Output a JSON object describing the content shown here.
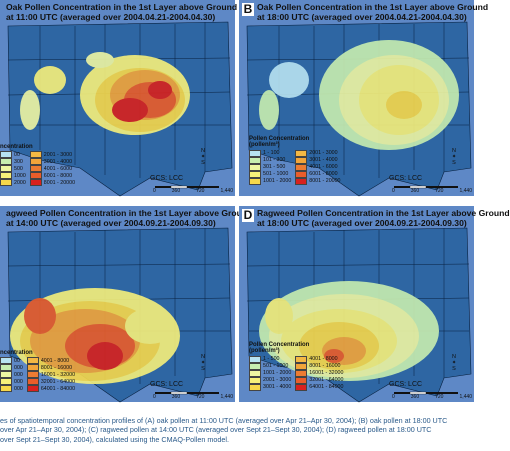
{
  "colors": {
    "ocean": "#5e88c6",
    "land_base": "#2e66a3",
    "state_line": "#08203f",
    "oak_low": [
      "#c9ecf5",
      "#eef6a2",
      "#f6f07a"
    ],
    "oak_high": [
      "#f6d84b",
      "#f2a53a",
      "#ea5d2a",
      "#d8211e"
    ],
    "legend_colors": [
      "#b8e3f1",
      "#c8eeb0",
      "#eef6a2",
      "#f6f07a",
      "#f6d84b",
      "#f4b844",
      "#f2a53a",
      "#ec7b32",
      "#ea5d2a",
      "#d8211e"
    ]
  },
  "panels": {
    "a": {
      "letter": "",
      "title1": "Oak Pollen Concentration in the 1st Layer above Ground",
      "title2": "at 11:00 UTC (averaged over 2004.04.21-2004.04.30)",
      "legend_title": "ncentration",
      "legend_unit": "",
      "legend_left": [
        "00",
        "300",
        "500",
        "1000",
        "2000"
      ],
      "legend_right": [
        "2001 - 3000",
        "3001 - 4000",
        "4001 - 6000",
        "6001 - 8000",
        "8001 - 20000"
      ]
    },
    "b": {
      "letter": "B",
      "title1": "Oak Pollen Concentration in the 1st Layer above Ground",
      "title2": "at 18:00 UTC (averaged over 2004.04.21-2004.04.30)",
      "legend_title": "Pollen Concentration",
      "legend_unit": "(pollen/m³)",
      "legend_left": [
        "1 - 100",
        "101 - 300",
        "301 - 500",
        "501 - 1000",
        "1001 - 2000"
      ],
      "legend_right": [
        "2001 - 3000",
        "3001 - 4000",
        "4001 - 6000",
        "6001 - 8000",
        "8001 - 20000"
      ]
    },
    "c": {
      "letter": "",
      "title1": "agweed Pollen Concentration in the 1st Layer above Ground",
      "title2": "at 14:00 UTC (averaged over 2004.09.21-2004.09.30)",
      "legend_title": "ncentration",
      "legend_unit": "",
      "legend_left": [
        "00",
        "000",
        "000",
        "000",
        "000"
      ],
      "legend_right": [
        "4001 - 8000",
        "8001 - 16000",
        "16001 - 32000",
        "32001 - 64000",
        "64001 - 84000"
      ]
    },
    "d": {
      "letter": "D",
      "title1": "Ragweed Pollen Concentration in the 1st Layer above Ground",
      "title2": "at 18:00 UTC (averaged over 2004.09.21-2004.09.30)",
      "legend_title": "Pollen Concentration",
      "legend_unit": "(pollen/m³)",
      "legend_left": [
        "1 - 500",
        "501 - 1000",
        "1001 - 2000",
        "2001 - 3000",
        "3001 - 4000"
      ],
      "legend_right": [
        "4001 - 8000",
        "8001 - 16000",
        "16001 - 32000",
        "32001 - 64000",
        "64001 - 84000"
      ]
    }
  },
  "map_common": {
    "projection": "GCS: LCC",
    "scale_ticks": [
      "0",
      "360",
      "720",
      "1,440"
    ],
    "scale_unit": "Km",
    "north_n": "N",
    "north_s": "S"
  },
  "caption": {
    "line1": "es of spatiotemporal concentration profiles of (A) oak pollen at 11:00 UTC (averaged over Apr 21–Apr 30, 2004); (B) oak pollen at 18:00 UTC",
    "line2": "over Apr 21–Apr 30, 2004); (C) ragweed pollen at 14:00 UTC (averaged over Sept 21–Sept 30, 2004); (D) ragweed pollen at 18:00 UTC",
    "line3": "over Sept 21–Sept 30, 2004), calculated using the CMAQ-Pollen model."
  }
}
